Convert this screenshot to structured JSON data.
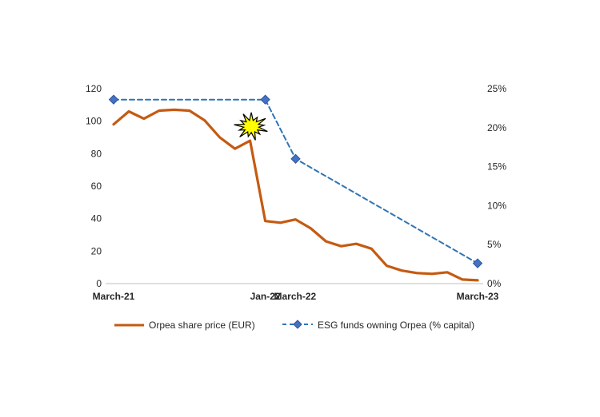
{
  "chart_data": {
    "type": "line",
    "title": "",
    "left_axis": {
      "min": 0,
      "max": 120,
      "step": 20,
      "ticks": [
        "0",
        "20",
        "40",
        "60",
        "80",
        "100",
        "120"
      ]
    },
    "right_axis": {
      "min": 0,
      "max": 25,
      "step": 5,
      "ticks": [
        "0%",
        "5%",
        "10%",
        "15%",
        "20%",
        "25%"
      ]
    },
    "x_labels": [
      {
        "label": "March-21",
        "month": 0
      },
      {
        "label": "Jan-22",
        "month": 10
      },
      {
        "label": "March-22",
        "month": 12
      },
      {
        "label": "March-23",
        "month": 24
      }
    ],
    "x_range": [
      0,
      24
    ],
    "series": [
      {
        "name": "Orpea share price (EUR)",
        "axis": "left",
        "color": "#C55A11",
        "style": "solid",
        "points": [
          [
            0,
            98
          ],
          [
            1,
            106
          ],
          [
            2,
            101.5
          ],
          [
            3,
            106.5
          ],
          [
            4,
            107
          ],
          [
            5,
            106.5
          ],
          [
            6,
            100.5
          ],
          [
            7,
            90
          ],
          [
            8,
            83
          ],
          [
            9,
            88
          ],
          [
            10,
            38.5
          ],
          [
            11,
            37.5
          ],
          [
            12,
            39.5
          ],
          [
            13,
            34
          ],
          [
            14,
            26
          ],
          [
            15,
            23
          ],
          [
            16,
            24.5
          ],
          [
            17,
            21.5
          ],
          [
            18,
            11
          ],
          [
            19,
            8
          ],
          [
            20,
            6.5
          ],
          [
            21,
            6
          ],
          [
            22,
            7
          ],
          [
            23,
            2.5
          ],
          [
            24,
            2
          ]
        ]
      },
      {
        "name": "ESG funds owning Orpea (% capital)",
        "axis": "right",
        "color": "#2E75B6",
        "marker_color": "#4472C4",
        "style": "dashed",
        "marker": "diamond",
        "points": [
          [
            0,
            23.6
          ],
          [
            10,
            23.6
          ],
          [
            12,
            16
          ],
          [
            24,
            2.6
          ]
        ]
      }
    ],
    "annotation": {
      "type": "explosion",
      "color": "#FFFF00",
      "at_month": 9,
      "at_value": 97
    },
    "legend_position": "bottom"
  }
}
